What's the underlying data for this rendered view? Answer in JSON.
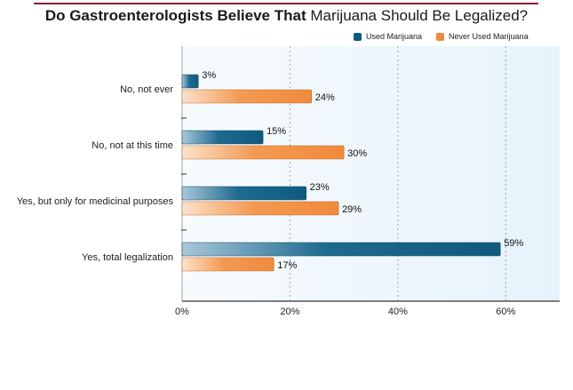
{
  "title": {
    "bold_part": "Do Gastroenterologists Believe That",
    "regular_part": "Marijuana Should Be Legalized?"
  },
  "colors": {
    "used_dark": "#0f5a7e",
    "never_dark": "#f08a3c",
    "title_rule": "#8b1a2b",
    "plot_bg": "#eef7fc"
  },
  "chart_data": {
    "type": "bar",
    "orientation": "horizontal",
    "categories": [
      "No, not ever",
      "No, not at this time",
      "Yes, but only for medicinal purposes",
      "Yes, total legalization"
    ],
    "series": [
      {
        "name": "Used Marijuana",
        "values": [
          3,
          15,
          23,
          59
        ],
        "labels": [
          "3%",
          "15%",
          "23%",
          "59%"
        ]
      },
      {
        "name": "Never Used Marijuana",
        "values": [
          24,
          30,
          29,
          17
        ],
        "labels": [
          "24%",
          "30%",
          "29%",
          "17%"
        ]
      }
    ],
    "xlim": [
      0,
      70
    ],
    "xticks": [
      0,
      20,
      40,
      60
    ],
    "xtick_labels": [
      "0%",
      "20%",
      "40%",
      "60%"
    ],
    "grid": true,
    "legend_position": "top-right"
  }
}
